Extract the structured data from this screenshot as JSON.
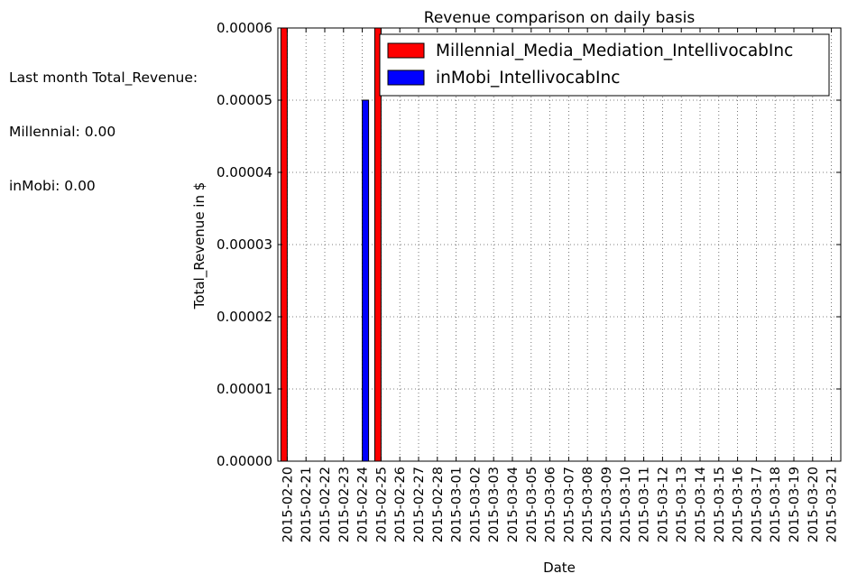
{
  "annotation": {
    "heading": "Last month Total_Revenue:",
    "line1": "Millennial: 0.00",
    "line2": "inMobi: 0.00"
  },
  "colors": {
    "millennial": "#ff0000",
    "inmobi": "#0000ff",
    "grid": "#555555"
  },
  "chart_data": {
    "type": "bar",
    "title": "Revenue comparison on daily basis",
    "xlabel": "Date",
    "ylabel": "Total_Revenue in $",
    "ylim": [
      0,
      6e-05
    ],
    "yticks": [
      "0.00000",
      "0.00001",
      "0.00002",
      "0.00003",
      "0.00004",
      "0.00005",
      "0.00006"
    ],
    "grid": true,
    "legend_position": "top-right",
    "categories": [
      "2015-02-20",
      "2015-02-21",
      "2015-02-22",
      "2015-02-23",
      "2015-02-24",
      "2015-02-25",
      "2015-02-26",
      "2015-02-27",
      "2015-02-28",
      "2015-03-01",
      "2015-03-02",
      "2015-03-03",
      "2015-03-04",
      "2015-03-05",
      "2015-03-06",
      "2015-03-07",
      "2015-03-08",
      "2015-03-09",
      "2015-03-10",
      "2015-03-11",
      "2015-03-12",
      "2015-03-13",
      "2015-03-14",
      "2015-03-15",
      "2015-03-16",
      "2015-03-17",
      "2015-03-18",
      "2015-03-19",
      "2015-03-20",
      "2015-03-21"
    ],
    "series": [
      {
        "name": "Millennial_Media_Mediation_IntellivocabInc",
        "color": "#ff0000",
        "values": [
          6e-05,
          0,
          0,
          0,
          0,
          6e-05,
          0,
          0,
          0,
          0,
          0,
          0,
          0,
          0,
          0,
          0,
          0,
          0,
          0,
          0,
          0,
          0,
          0,
          0,
          0,
          0,
          0,
          0,
          0,
          0
        ]
      },
      {
        "name": "inMobi_IntellivocabInc",
        "color": "#0000ff",
        "values": [
          0,
          0,
          0,
          0,
          5e-05,
          0,
          0,
          0,
          0,
          0,
          0,
          0,
          0,
          0,
          0,
          0,
          0,
          0,
          0,
          0,
          0,
          0,
          0,
          0,
          0,
          0,
          0,
          0,
          0,
          0
        ]
      }
    ]
  }
}
